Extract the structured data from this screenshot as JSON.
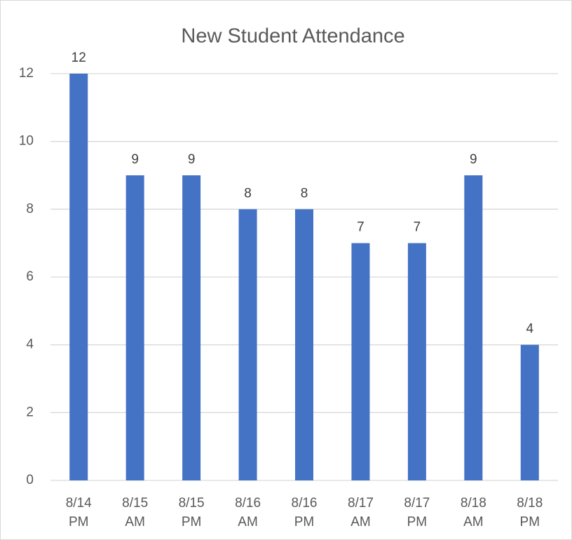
{
  "chart_data": {
    "type": "bar",
    "title": "New Student Attendance",
    "categories": [
      "8/14 PM",
      "8/15 AM",
      "8/15 PM",
      "8/16 AM",
      "8/16 PM",
      "8/17 AM",
      "8/17 PM",
      "8/18 AM",
      "8/18 PM"
    ],
    "values": [
      12,
      9,
      9,
      8,
      8,
      7,
      7,
      9,
      4
    ],
    "color": "#4472c4",
    "ylim": [
      0,
      12
    ],
    "yticks": [
      0,
      2,
      4,
      6,
      8,
      10,
      12
    ],
    "grid": true,
    "data_labels": true
  }
}
